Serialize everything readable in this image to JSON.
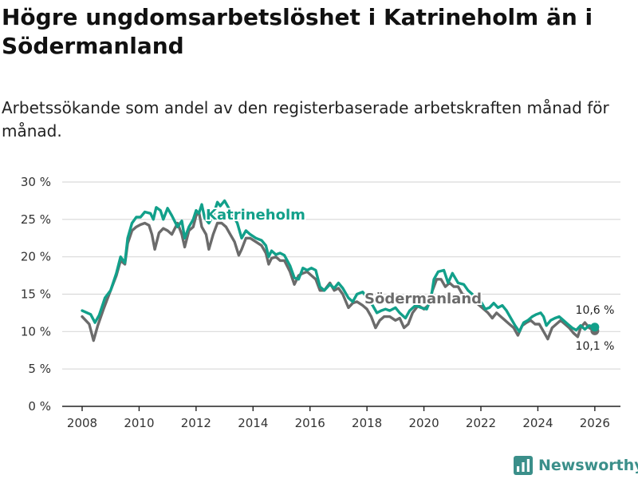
{
  "header": {
    "title": "Högre ungdomsarbetslöshet i Katrineholm än i Södermanland",
    "subtitle": "Arbetssökande som andel av den registerbaserade arbetskraften månad för månad."
  },
  "brand": {
    "name": "Newsworthy",
    "icon": "bar-chart-logo-icon"
  },
  "colors": {
    "katrineholm": "#12a08a",
    "sodermanland": "#6b6b6b",
    "grid": "#d9d9d9",
    "axis": "#222222"
  },
  "chart_data": {
    "type": "line",
    "title": "Högre ungdomsarbetslöshet i Katrineholm än i Södermanland",
    "subtitle": "Arbetssökande som andel av den registerbaserade arbetskraften månad för månad.",
    "xlabel": "",
    "ylabel": "",
    "xlim": [
      2007.3,
      2026.9
    ],
    "ylim": [
      0,
      30
    ],
    "yticks": [
      0,
      5,
      10,
      15,
      20,
      25,
      30
    ],
    "ytick_labels": [
      "0 %",
      "5 %",
      "10 %",
      "15 %",
      "20 %",
      "25 %",
      "30 %"
    ],
    "xticks": [
      2008,
      2010,
      2012,
      2014,
      2016,
      2018,
      2020,
      2022,
      2024,
      2026
    ],
    "xtick_labels": [
      "2008",
      "2010",
      "2012",
      "2014",
      "2016",
      "2018",
      "2020",
      "2022",
      "2024",
      "2026"
    ],
    "grid": true,
    "series": [
      {
        "name": "Katrineholm",
        "label": "Katrineholm",
        "end_label": "10,6 %",
        "end_value": 10.6,
        "points": [
          [
            2008.0,
            12.8
          ],
          [
            2008.3,
            12.3
          ],
          [
            2008.45,
            11.2
          ],
          [
            2008.6,
            12.2
          ],
          [
            2008.8,
            14.5
          ],
          [
            2009.0,
            15.5
          ],
          [
            2009.2,
            17.8
          ],
          [
            2009.35,
            20.0
          ],
          [
            2009.5,
            19.2
          ],
          [
            2009.6,
            22.5
          ],
          [
            2009.75,
            24.5
          ],
          [
            2009.9,
            25.3
          ],
          [
            2010.05,
            25.3
          ],
          [
            2010.2,
            26.0
          ],
          [
            2010.4,
            25.8
          ],
          [
            2010.5,
            25.0
          ],
          [
            2010.6,
            26.6
          ],
          [
            2010.75,
            26.2
          ],
          [
            2010.85,
            25.0
          ],
          [
            2011.0,
            26.5
          ],
          [
            2011.15,
            25.5
          ],
          [
            2011.35,
            24.0
          ],
          [
            2011.5,
            24.8
          ],
          [
            2011.6,
            22.5
          ],
          [
            2011.75,
            24.0
          ],
          [
            2011.9,
            25.0
          ],
          [
            2012.0,
            26.2
          ],
          [
            2012.1,
            25.8
          ],
          [
            2012.2,
            27.0
          ],
          [
            2012.3,
            25.2
          ],
          [
            2012.45,
            24.5
          ],
          [
            2012.6,
            25.5
          ],
          [
            2012.75,
            27.3
          ],
          [
            2012.85,
            26.8
          ],
          [
            2013.0,
            27.5
          ],
          [
            2013.15,
            26.5
          ],
          [
            2013.3,
            25.5
          ],
          [
            2013.45,
            24.5
          ],
          [
            2013.6,
            22.5
          ],
          [
            2013.75,
            23.5
          ],
          [
            2013.9,
            23.0
          ],
          [
            2014.1,
            22.5
          ],
          [
            2014.3,
            22.2
          ],
          [
            2014.45,
            21.5
          ],
          [
            2014.55,
            20.0
          ],
          [
            2014.65,
            20.8
          ],
          [
            2014.8,
            20.3
          ],
          [
            2014.95,
            20.5
          ],
          [
            2015.1,
            20.2
          ],
          [
            2015.3,
            18.8
          ],
          [
            2015.45,
            17.2
          ],
          [
            2015.6,
            17.0
          ],
          [
            2015.75,
            18.5
          ],
          [
            2015.9,
            18.2
          ],
          [
            2016.05,
            18.5
          ],
          [
            2016.2,
            18.2
          ],
          [
            2016.35,
            16.0
          ],
          [
            2016.5,
            15.5
          ],
          [
            2016.7,
            16.3
          ],
          [
            2016.85,
            15.8
          ],
          [
            2017.0,
            16.5
          ],
          [
            2017.15,
            15.8
          ],
          [
            2017.35,
            14.5
          ],
          [
            2017.5,
            14.0
          ],
          [
            2017.65,
            15.0
          ],
          [
            2017.85,
            15.3
          ],
          [
            2018.0,
            14.5
          ],
          [
            2018.2,
            13.5
          ],
          [
            2018.35,
            12.5
          ],
          [
            2018.5,
            12.8
          ],
          [
            2018.65,
            13.0
          ],
          [
            2018.8,
            12.8
          ],
          [
            2019.0,
            13.2
          ],
          [
            2019.15,
            12.5
          ],
          [
            2019.35,
            11.8
          ],
          [
            2019.5,
            12.8
          ],
          [
            2019.7,
            13.5
          ],
          [
            2019.9,
            13.2
          ],
          [
            2020.1,
            13.0
          ],
          [
            2020.25,
            14.5
          ],
          [
            2020.35,
            17.0
          ],
          [
            2020.5,
            18.0
          ],
          [
            2020.7,
            18.2
          ],
          [
            2020.85,
            16.5
          ],
          [
            2021.0,
            17.8
          ],
          [
            2021.2,
            16.5
          ],
          [
            2021.4,
            16.3
          ],
          [
            2021.55,
            15.5
          ],
          [
            2021.7,
            15.0
          ],
          [
            2021.85,
            14.3
          ],
          [
            2022.0,
            14.0
          ],
          [
            2022.15,
            13.0
          ],
          [
            2022.3,
            13.2
          ],
          [
            2022.45,
            13.8
          ],
          [
            2022.6,
            13.2
          ],
          [
            2022.75,
            13.5
          ],
          [
            2022.9,
            12.8
          ],
          [
            2023.05,
            11.8
          ],
          [
            2023.2,
            10.8
          ],
          [
            2023.35,
            10.0
          ],
          [
            2023.5,
            11.2
          ],
          [
            2023.65,
            11.5
          ],
          [
            2023.8,
            12.0
          ],
          [
            2023.95,
            12.3
          ],
          [
            2024.1,
            12.5
          ],
          [
            2024.2,
            12.0
          ],
          [
            2024.3,
            10.8
          ],
          [
            2024.45,
            11.5
          ],
          [
            2024.6,
            11.8
          ],
          [
            2024.75,
            12.0
          ],
          [
            2024.9,
            11.5
          ],
          [
            2025.05,
            11.0
          ],
          [
            2025.2,
            10.5
          ],
          [
            2025.35,
            10.2
          ],
          [
            2025.5,
            10.8
          ],
          [
            2025.65,
            10.3
          ],
          [
            2025.8,
            10.8
          ],
          [
            2026.0,
            10.6
          ]
        ]
      },
      {
        "name": "Södermanland",
        "label": "Södermanland",
        "end_label": "10,1 %",
        "end_value": 10.1,
        "points": [
          [
            2008.0,
            12.0
          ],
          [
            2008.25,
            11.0
          ],
          [
            2008.4,
            8.8
          ],
          [
            2008.55,
            10.8
          ],
          [
            2008.75,
            13.0
          ],
          [
            2009.0,
            15.5
          ],
          [
            2009.2,
            17.5
          ],
          [
            2009.35,
            19.5
          ],
          [
            2009.5,
            19.0
          ],
          [
            2009.6,
            21.8
          ],
          [
            2009.75,
            23.5
          ],
          [
            2009.9,
            24.0
          ],
          [
            2010.05,
            24.3
          ],
          [
            2010.2,
            24.5
          ],
          [
            2010.35,
            24.2
          ],
          [
            2010.45,
            23.0
          ],
          [
            2010.55,
            21.0
          ],
          [
            2010.7,
            23.2
          ],
          [
            2010.85,
            23.8
          ],
          [
            2011.0,
            23.5
          ],
          [
            2011.15,
            23.0
          ],
          [
            2011.35,
            24.5
          ],
          [
            2011.5,
            23.0
          ],
          [
            2011.6,
            21.3
          ],
          [
            2011.75,
            23.5
          ],
          [
            2011.9,
            24.0
          ],
          [
            2012.0,
            25.5
          ],
          [
            2012.1,
            26.0
          ],
          [
            2012.2,
            24.0
          ],
          [
            2012.35,
            23.0
          ],
          [
            2012.45,
            21.0
          ],
          [
            2012.6,
            23.0
          ],
          [
            2012.75,
            24.5
          ],
          [
            2012.9,
            24.5
          ],
          [
            2013.05,
            24.0
          ],
          [
            2013.2,
            23.0
          ],
          [
            2013.35,
            22.0
          ],
          [
            2013.5,
            20.2
          ],
          [
            2013.6,
            21.0
          ],
          [
            2013.75,
            22.5
          ],
          [
            2013.9,
            22.5
          ],
          [
            2014.1,
            22.0
          ],
          [
            2014.3,
            21.5
          ],
          [
            2014.45,
            20.5
          ],
          [
            2014.55,
            19.0
          ],
          [
            2014.65,
            19.8
          ],
          [
            2014.8,
            20.0
          ],
          [
            2014.95,
            19.5
          ],
          [
            2015.1,
            19.5
          ],
          [
            2015.3,
            18.0
          ],
          [
            2015.45,
            16.3
          ],
          [
            2015.6,
            17.5
          ],
          [
            2015.75,
            17.8
          ],
          [
            2015.9,
            18.0
          ],
          [
            2016.05,
            17.5
          ],
          [
            2016.2,
            17.0
          ],
          [
            2016.35,
            15.5
          ],
          [
            2016.5,
            15.5
          ],
          [
            2016.7,
            16.5
          ],
          [
            2016.85,
            15.5
          ],
          [
            2017.0,
            15.8
          ],
          [
            2017.15,
            15.0
          ],
          [
            2017.35,
            13.2
          ],
          [
            2017.5,
            13.8
          ],
          [
            2017.65,
            14.0
          ],
          [
            2017.85,
            13.5
          ],
          [
            2018.0,
            13.0
          ],
          [
            2018.15,
            12.0
          ],
          [
            2018.3,
            10.5
          ],
          [
            2018.45,
            11.5
          ],
          [
            2018.6,
            12.0
          ],
          [
            2018.8,
            12.0
          ],
          [
            2019.0,
            11.5
          ],
          [
            2019.15,
            11.8
          ],
          [
            2019.3,
            10.5
          ],
          [
            2019.45,
            11.0
          ],
          [
            2019.6,
            12.5
          ],
          [
            2019.8,
            13.5
          ],
          [
            2020.0,
            13.0
          ],
          [
            2020.15,
            13.5
          ],
          [
            2020.3,
            15.5
          ],
          [
            2020.45,
            17.0
          ],
          [
            2020.6,
            17.0
          ],
          [
            2020.75,
            16.0
          ],
          [
            2020.9,
            16.5
          ],
          [
            2021.05,
            16.0
          ],
          [
            2021.2,
            16.0
          ],
          [
            2021.35,
            15.0
          ],
          [
            2021.5,
            14.8
          ],
          [
            2021.65,
            14.5
          ],
          [
            2021.8,
            14.0
          ],
          [
            2021.95,
            13.5
          ],
          [
            2022.1,
            13.0
          ],
          [
            2022.25,
            12.5
          ],
          [
            2022.4,
            11.8
          ],
          [
            2022.55,
            12.5
          ],
          [
            2022.7,
            12.0
          ],
          [
            2022.85,
            11.5
          ],
          [
            2023.0,
            11.0
          ],
          [
            2023.15,
            10.5
          ],
          [
            2023.3,
            9.5
          ],
          [
            2023.45,
            10.8
          ],
          [
            2023.6,
            11.2
          ],
          [
            2023.75,
            11.5
          ],
          [
            2023.9,
            11.0
          ],
          [
            2024.05,
            11.0
          ],
          [
            2024.2,
            10.0
          ],
          [
            2024.35,
            9.0
          ],
          [
            2024.5,
            10.5
          ],
          [
            2024.65,
            11.0
          ],
          [
            2024.8,
            11.5
          ],
          [
            2024.95,
            11.0
          ],
          [
            2025.1,
            10.5
          ],
          [
            2025.25,
            9.8
          ],
          [
            2025.4,
            9.3
          ],
          [
            2025.5,
            10.5
          ],
          [
            2025.65,
            11.2
          ],
          [
            2025.8,
            10.5
          ],
          [
            2026.0,
            10.1
          ]
        ]
      }
    ],
    "annotations": [
      {
        "text": "Katrineholm",
        "series": "Katrineholm"
      },
      {
        "text": "Södermanland",
        "series": "Södermanland"
      },
      {
        "text": "10,6 %",
        "series": "Katrineholm"
      },
      {
        "text": "10,1 %",
        "series": "Södermanland"
      }
    ]
  }
}
